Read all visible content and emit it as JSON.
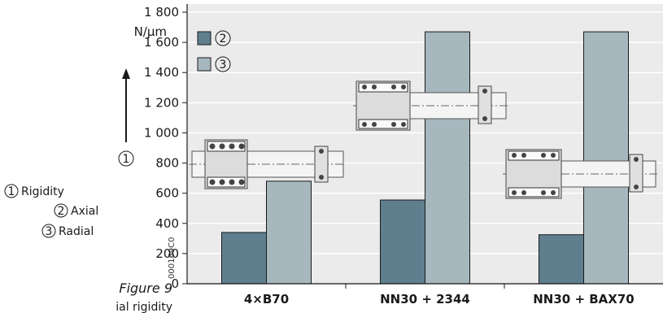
{
  "figure": {
    "label": "Figure 9",
    "caption_fragment": "ial rigidity",
    "code": "000169C0"
  },
  "side_legend": [
    {
      "symbol": "1",
      "text": "Rigidity"
    },
    {
      "symbol": "2",
      "text": "Axial"
    },
    {
      "symbol": "3",
      "text": "Radial"
    }
  ],
  "colors": {
    "plot_bg": "#ebebeb",
    "series_axial": "#5f7f8f",
    "series_radial": "#a6b7be",
    "axis": "#1a1a1a"
  },
  "chart_data": {
    "type": "bar",
    "categories": [
      "4×B70",
      "NN30 + 2344",
      "NN30 + BAX70"
    ],
    "series": [
      {
        "name": "2",
        "values": [
          340,
          555,
          325
        ]
      },
      {
        "name": "3",
        "values": [
          680,
          1670,
          1670
        ]
      }
    ],
    "ylabel": "N/µm",
    "y_axis_symbol": "1",
    "ylim": [
      0,
      1800
    ],
    "yticks": [
      "0",
      "200",
      "400",
      "600",
      "800",
      "1 000",
      "1 200",
      "1 400",
      "1 600",
      "1 800"
    ],
    "legend_position": "top-left",
    "grid": true
  }
}
